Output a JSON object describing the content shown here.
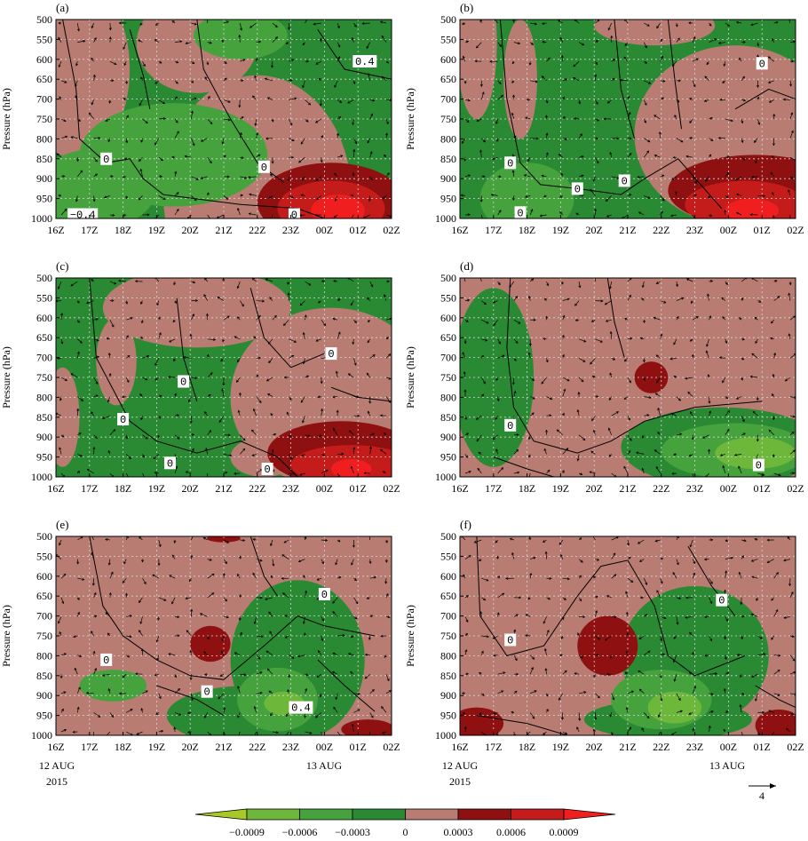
{
  "figure": {
    "ylabel": "Pressure (hPa)",
    "date_left": "12 AUG",
    "date_right": "13 AUG",
    "year": "2015",
    "arrow_scale_label": "4"
  },
  "colors": {
    "dark_green": "#2a8a33",
    "mid_green": "#45a23c",
    "light_green": "#6db83a",
    "lightest_green": "#a8c827",
    "neutral_pink": "#b97c73",
    "dark_red": "#8f1010",
    "red": "#c41b1b",
    "bright_red": "#f01e1e"
  },
  "colorbar": {
    "tick_labels": [
      "−0.0009",
      "−0.0006",
      "−0.0003",
      "0",
      "0.0003",
      "0.0006",
      "0.0009"
    ],
    "bins": [
      "lightest_green",
      "light_green",
      "mid_green",
      "dark_green",
      "neutral_pink",
      "dark_red",
      "red",
      "bright_red"
    ]
  },
  "chart_data": [
    {
      "panel": "(a)",
      "type": "heatmap",
      "xlabel": "",
      "ylabel": "Pressure (hPa)",
      "x_ticks": [
        "16Z",
        "17Z",
        "18Z",
        "19Z",
        "20Z",
        "21Z",
        "22Z",
        "23Z",
        "00Z",
        "01Z",
        "02Z"
      ],
      "y_ticks": [
        500,
        550,
        600,
        650,
        700,
        750,
        800,
        850,
        900,
        950,
        1000
      ],
      "ylim": [
        1000,
        500
      ],
      "contour_labels": [
        "0.4",
        "0",
        "0",
        "−0.4",
        "0"
      ]
    },
    {
      "panel": "(b)",
      "type": "heatmap",
      "xlabel": "",
      "ylabel": "Pressure (hPa)",
      "x_ticks": [
        "16Z",
        "17Z",
        "18Z",
        "19Z",
        "20Z",
        "21Z",
        "22Z",
        "23Z",
        "00Z",
        "01Z",
        "02Z"
      ],
      "y_ticks": [
        500,
        550,
        600,
        650,
        700,
        750,
        800,
        850,
        900,
        950,
        1000
      ],
      "ylim": [
        1000,
        500
      ],
      "contour_labels": [
        "0",
        "0",
        "0",
        "0",
        "0"
      ]
    },
    {
      "panel": "(c)",
      "type": "heatmap",
      "xlabel": "",
      "ylabel": "Pressure (hPa)",
      "x_ticks": [
        "16Z",
        "17Z",
        "18Z",
        "19Z",
        "20Z",
        "21Z",
        "22Z",
        "23Z",
        "00Z",
        "01Z",
        "02Z"
      ],
      "y_ticks": [
        500,
        550,
        600,
        650,
        700,
        750,
        800,
        850,
        900,
        950,
        1000
      ],
      "ylim": [
        1000,
        500
      ],
      "contour_labels": [
        "0",
        "0",
        "0",
        "0",
        "0"
      ]
    },
    {
      "panel": "(d)",
      "type": "heatmap",
      "xlabel": "",
      "ylabel": "Pressure (hPa)",
      "x_ticks": [
        "16Z",
        "17Z",
        "18Z",
        "19Z",
        "20Z",
        "21Z",
        "22Z",
        "23Z",
        "00Z",
        "01Z",
        "02Z"
      ],
      "y_ticks": [
        500,
        550,
        600,
        650,
        700,
        750,
        800,
        850,
        900,
        950,
        1000
      ],
      "ylim": [
        1000,
        500
      ],
      "contour_labels": [
        "0",
        "0"
      ]
    },
    {
      "panel": "(e)",
      "type": "heatmap",
      "xlabel": "",
      "ylabel": "Pressure (hPa)",
      "x_ticks": [
        "16Z",
        "17Z",
        "18Z",
        "19Z",
        "20Z",
        "21Z",
        "22Z",
        "23Z",
        "00Z",
        "01Z",
        "02Z"
      ],
      "y_ticks": [
        500,
        550,
        600,
        650,
        700,
        750,
        800,
        850,
        900,
        950,
        1000
      ],
      "ylim": [
        1000,
        500
      ],
      "contour_labels": [
        "0",
        "0",
        "0",
        "0.4"
      ]
    },
    {
      "panel": "(f)",
      "type": "heatmap",
      "xlabel": "",
      "ylabel": "Pressure (hPa)",
      "x_ticks": [
        "16Z",
        "17Z",
        "18Z",
        "19Z",
        "20Z",
        "21Z",
        "22Z",
        "23Z",
        "00Z",
        "01Z",
        "02Z"
      ],
      "y_ticks": [
        500,
        550,
        600,
        650,
        700,
        750,
        800,
        850,
        900,
        950,
        1000
      ],
      "ylim": [
        1000,
        500
      ],
      "contour_labels": [
        "0",
        "0"
      ]
    }
  ]
}
